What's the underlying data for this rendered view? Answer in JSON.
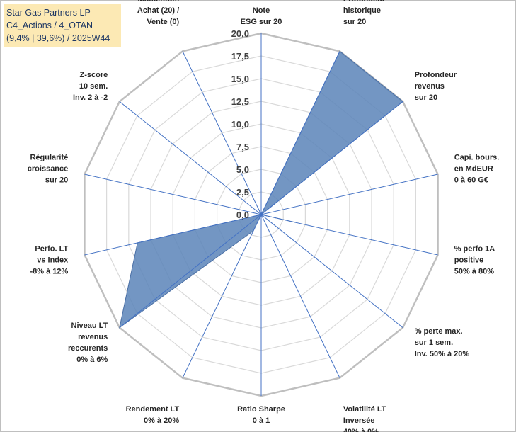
{
  "header": {
    "line1": "Star Gas Partners LP",
    "line2": "C4_Actions / 4_OTAN",
    "line3": "(9,4% | 39,6%) / 2025W44"
  },
  "colors": {
    "fill": "#5b84b8",
    "stroke": "#4a6fa5",
    "axis": "#4472c4",
    "grid": "#d9d9d9",
    "outer": "#bfbfbf",
    "title_bg": "#fce9b4"
  },
  "chart_data": {
    "type": "radar",
    "r_range": [
      0,
      20
    ],
    "tick_labels": [
      "0,0",
      "2,5",
      "5,0",
      "7,5",
      "10,0",
      "12,5",
      "15,0",
      "17,5",
      "20,0"
    ],
    "categories": [
      [
        "Note",
        "ESG sur 20"
      ],
      [
        "Profondeur",
        "historique",
        "sur 20"
      ],
      [
        "Profondeur",
        "revenus",
        "sur 20"
      ],
      [
        "Capi. bours.",
        "en MdEUR",
        "0 à 60 G€"
      ],
      [
        "% perfo 1A",
        "positive",
        "50% à 80%"
      ],
      [
        "% perte max.",
        "sur 1 sem.",
        "Inv. 50% à 20%"
      ],
      [
        "Volatilité LT",
        "Inversée",
        "40% à 0%"
      ],
      [
        "Ratio Sharpe",
        "0 à 1"
      ],
      [
        "Rendement LT",
        "0% à 20%"
      ],
      [
        "Niveau LT",
        "revenus",
        "reccurents",
        "0% à 6%"
      ],
      [
        "Perfo. LT",
        "vs Index",
        "-8% à 12%"
      ],
      [
        "Régularité",
        "croissance",
        "sur 20"
      ],
      [
        "Z-score",
        "10 sem.",
        "Inv. 2 à -2"
      ],
      [
        "Momentum",
        "Achat (20) /",
        "Vente (0)"
      ]
    ],
    "series": [
      {
        "name": "Star Gas Partners LP",
        "values": [
          0,
          20,
          20,
          0,
          4,
          0,
          0,
          0,
          2,
          20,
          14,
          0,
          0,
          0
        ]
      }
    ]
  }
}
